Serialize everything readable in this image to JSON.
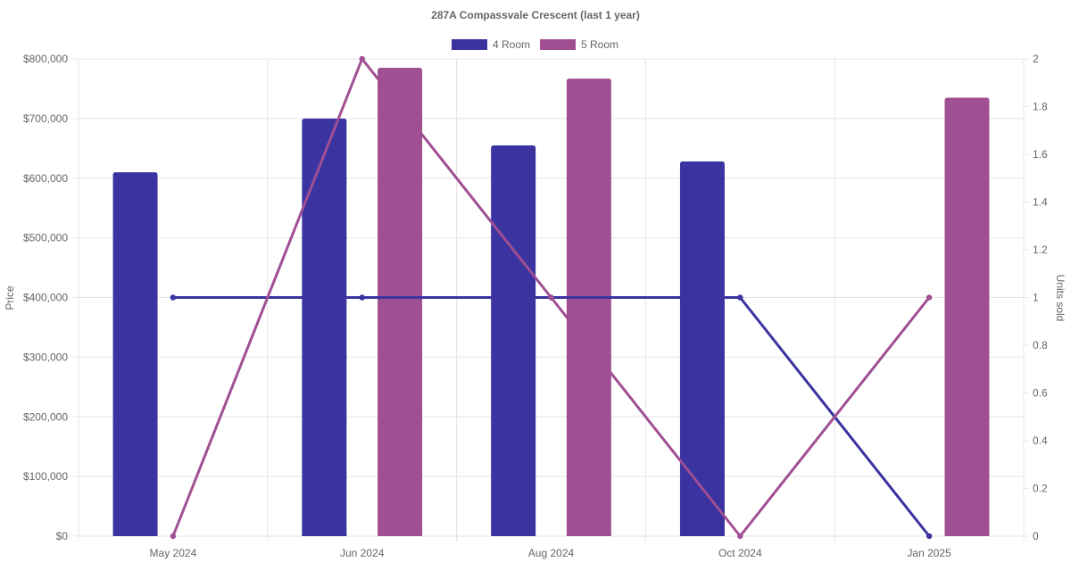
{
  "chart_data": {
    "type": "bar",
    "title": "287A Compassvale Crescent (last 1 year)",
    "categories": [
      "May 2024",
      "Jun 2024",
      "Aug 2024",
      "Oct 2024",
      "Jan 2025"
    ],
    "legend": {
      "placement": "top-center",
      "items": [
        {
          "label": "4 Room",
          "color": "#3a33a0"
        },
        {
          "label": "5 Room",
          "color": "#a04f93"
        }
      ]
    },
    "series": [
      {
        "name": "4 Room",
        "type": "bar",
        "axis": "left",
        "color": "#3a33a0",
        "values": [
          610000,
          700000,
          655000,
          628000,
          null
        ]
      },
      {
        "name": "5 Room",
        "type": "bar",
        "axis": "left",
        "color": "#a04f93",
        "values": [
          null,
          785000,
          767000,
          null,
          735000
        ]
      },
      {
        "name": "4 Room",
        "type": "line",
        "axis": "right",
        "color": "#3a33a0",
        "values": [
          1,
          1,
          1,
          1,
          0
        ]
      },
      {
        "name": "5 Room",
        "type": "line",
        "axis": "right",
        "color": "#a04f93",
        "values": [
          0,
          2,
          1,
          0,
          1
        ]
      }
    ],
    "y_left": {
      "label": "Price",
      "ylim": [
        0,
        800000
      ],
      "ticks": [
        "$0",
        "$100,000",
        "$200,000",
        "$300,000",
        "$400,000",
        "$500,000",
        "$600,000",
        "$700,000",
        "$800,000"
      ]
    },
    "y_right": {
      "label": "Units sold",
      "ylim": [
        0,
        2
      ],
      "ticks": [
        "0",
        "0.2",
        "0.4",
        "0.6",
        "0.8",
        "1",
        "1.2",
        "1.4",
        "1.6",
        "1.8",
        "2"
      ]
    },
    "grid": true
  }
}
